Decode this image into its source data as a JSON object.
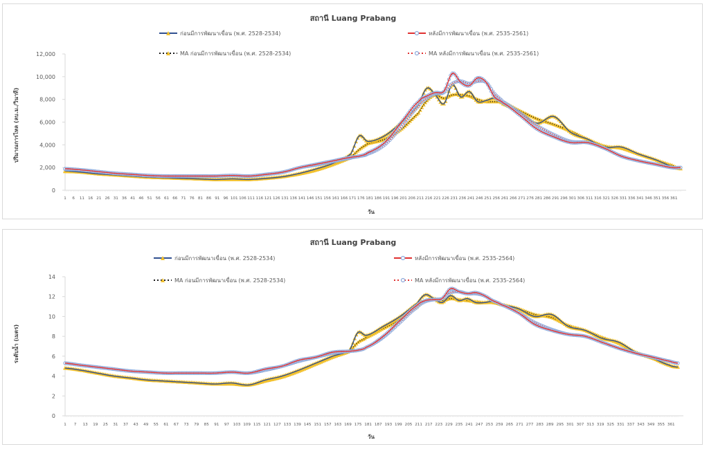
{
  "chart_data": [
    {
      "type": "line",
      "title": "สถานี Luang Prabang",
      "xlabel": "วัน",
      "ylabel": "ปริมาณการไหล (ลบ.ม./วินาที)",
      "ylim": [
        0,
        12000
      ],
      "yticks": [
        0,
        2000,
        4000,
        6000,
        8000,
        10000,
        12000
      ],
      "ytick_labels": [
        "0",
        "2,000",
        "4,000",
        "6,000",
        "8,000",
        "10,000",
        "12,000"
      ],
      "xlim": [
        1,
        365
      ],
      "xtick_step": 5,
      "xtick_labels": [
        "1",
        "6",
        "11",
        "16",
        "21",
        "26",
        "31",
        "36",
        "41",
        "46",
        "51",
        "56",
        "61",
        "66",
        "71",
        "76",
        "81",
        "86",
        "91",
        "96",
        "101",
        "106",
        "111",
        "116",
        "121",
        "126",
        "131",
        "136",
        "141",
        "146",
        "151",
        "156",
        "161",
        "166",
        "171",
        "176",
        "181",
        "186",
        "191",
        "196",
        "201",
        "206",
        "211",
        "216",
        "221",
        "226",
        "231",
        "236",
        "241",
        "246",
        "251",
        "256",
        "261",
        "266",
        "271",
        "276",
        "281",
        "286",
        "291",
        "296",
        "301",
        "306",
        "311",
        "316",
        "321",
        "326",
        "331",
        "336",
        "341",
        "346",
        "351",
        "356",
        "361"
      ],
      "grid": false,
      "legend_position": "top",
      "x": [
        1,
        10,
        20,
        30,
        40,
        50,
        60,
        70,
        80,
        90,
        100,
        110,
        120,
        130,
        140,
        150,
        160,
        170,
        175,
        180,
        190,
        200,
        210,
        215,
        220,
        225,
        230,
        235,
        240,
        245,
        250,
        255,
        260,
        270,
        280,
        290,
        300,
        310,
        320,
        330,
        340,
        350,
        360,
        365
      ],
      "series": [
        {
          "name": "ก่อนมีการพัฒนาเขื่อน (พ.ศ. 2528-2534)",
          "style": "solid-marker",
          "color": "#2f4f8f",
          "marker_color": "#f2c12e",
          "values": [
            1700,
            1600,
            1450,
            1350,
            1250,
            1150,
            1100,
            1050,
            1000,
            950,
            1000,
            950,
            1050,
            1200,
            1500,
            1900,
            2400,
            3200,
            4800,
            4300,
            4800,
            6000,
            7500,
            9000,
            8400,
            7600,
            9300,
            8200,
            8700,
            7800,
            7900,
            8100,
            7600,
            6900,
            5900,
            6500,
            5100,
            4500,
            3800,
            3800,
            3200,
            2700,
            2100,
            1900
          ]
        },
        {
          "name": "หลังมีการพัฒนาเขื่อน (พ.ศ. 2535-2561)",
          "style": "solid-marker",
          "color": "#e03030",
          "marker_color": "#8da9db",
          "values": [
            1900,
            1800,
            1650,
            1500,
            1400,
            1300,
            1250,
            1250,
            1250,
            1250,
            1300,
            1250,
            1400,
            1600,
            2000,
            2300,
            2600,
            2900,
            3000,
            3300,
            4200,
            6000,
            7800,
            8300,
            8600,
            8700,
            10300,
            9500,
            9200,
            9900,
            9500,
            8200,
            7700,
            6600,
            5400,
            4700,
            4200,
            4200,
            3700,
            3000,
            2600,
            2300,
            2000,
            2000
          ]
        },
        {
          "name": "MA ก่อนมีการพัฒนาเขื่อน (พ.ศ. 2528-2534)",
          "style": "dotted-marker",
          "color": "#1a1a1a",
          "marker_color": "#f2c12e",
          "values": [
            1650,
            1600,
            1450,
            1350,
            1250,
            1150,
            1100,
            1050,
            1000,
            950,
            950,
            950,
            1050,
            1200,
            1450,
            1800,
            2300,
            2900,
            3600,
            4100,
            4500,
            5400,
            6800,
            7900,
            8400,
            8100,
            8400,
            8400,
            8300,
            8000,
            7800,
            7800,
            7700,
            7000,
            6300,
            5800,
            5200,
            4500,
            3900,
            3700,
            3200,
            2700,
            2200,
            1900
          ]
        },
        {
          "name": "MA หลังมีการพัฒนาเขื่อน (พ.ศ. 2535-2561)",
          "style": "dotted-marker",
          "color": "#e03030",
          "marker_color": "#8da9db",
          "values": [
            1850,
            1800,
            1650,
            1500,
            1400,
            1300,
            1250,
            1250,
            1250,
            1250,
            1300,
            1250,
            1400,
            1600,
            2000,
            2250,
            2550,
            2850,
            3000,
            3200,
            4000,
            5600,
            7400,
            8100,
            8500,
            8600,
            9400,
            9600,
            9400,
            9600,
            9500,
            8500,
            7800,
            6800,
            5700,
            4900,
            4300,
            4200,
            3700,
            3000,
            2600,
            2300,
            2000,
            2000
          ]
        }
      ]
    },
    {
      "type": "line",
      "title": "สถานี Luang Prabang",
      "xlabel": "วัน",
      "ylabel": "ระดับน้ำ (เมตร)",
      "ylim": [
        0,
        14
      ],
      "yticks": [
        0,
        2,
        4,
        6,
        8,
        10,
        12,
        14
      ],
      "ytick_labels": [
        "0",
        "2",
        "4",
        "6",
        "8",
        "10",
        "12",
        "14"
      ],
      "xlim": [
        1,
        365
      ],
      "xtick_step": 6,
      "xtick_labels": [
        "1",
        "7",
        "13",
        "19",
        "25",
        "31",
        "37",
        "43",
        "49",
        "55",
        "61",
        "67",
        "73",
        "79",
        "85",
        "91",
        "97",
        "103",
        "109",
        "115",
        "121",
        "127",
        "133",
        "139",
        "145",
        "151",
        "157",
        "163",
        "169",
        "175",
        "181",
        "187",
        "193",
        "199",
        "205",
        "211",
        "217",
        "223",
        "229",
        "235",
        "241",
        "247",
        "253",
        "259",
        "265",
        "271",
        "277",
        "283",
        "289",
        "295",
        "301",
        "307",
        "313",
        "319",
        "325",
        "331",
        "337",
        "343",
        "349",
        "355",
        "361"
      ],
      "grid": false,
      "legend_position": "top",
      "x": [
        1,
        10,
        20,
        30,
        40,
        50,
        60,
        70,
        80,
        90,
        100,
        110,
        120,
        130,
        140,
        150,
        160,
        170,
        175,
        180,
        190,
        200,
        210,
        215,
        220,
        225,
        230,
        235,
        240,
        245,
        250,
        255,
        260,
        270,
        280,
        290,
        300,
        310,
        320,
        330,
        340,
        350,
        360,
        365
      ],
      "series": [
        {
          "name": "ก่อนมีการพัฒนาเขื่อน (พ.ศ. 2528-2534)",
          "style": "solid-marker",
          "color": "#2f4f8f",
          "marker_color": "#f2c12e",
          "values": [
            4.8,
            4.6,
            4.3,
            4.0,
            3.8,
            3.6,
            3.5,
            3.4,
            3.3,
            3.2,
            3.3,
            3.1,
            3.6,
            4.0,
            4.6,
            5.3,
            6.0,
            6.6,
            8.4,
            8.1,
            9.0,
            10.0,
            11.3,
            12.2,
            11.8,
            11.4,
            12.1,
            11.6,
            11.8,
            11.4,
            11.4,
            11.5,
            11.2,
            10.8,
            10.0,
            10.2,
            9.0,
            8.6,
            7.8,
            7.4,
            6.4,
            5.8,
            5.1,
            4.9
          ]
        },
        {
          "name": "หลังมีการพัฒนาเขื่อน (พ.ศ. 2535-2564)",
          "style": "solid-marker",
          "color": "#e03030",
          "marker_color": "#8da9db",
          "values": [
            5.3,
            5.1,
            4.9,
            4.7,
            4.5,
            4.4,
            4.3,
            4.3,
            4.3,
            4.3,
            4.4,
            4.3,
            4.7,
            5.0,
            5.6,
            5.9,
            6.4,
            6.5,
            6.6,
            6.9,
            8.0,
            9.6,
            11.1,
            11.6,
            11.7,
            11.8,
            12.8,
            12.5,
            12.3,
            12.4,
            12.1,
            11.6,
            11.2,
            10.4,
            9.2,
            8.6,
            8.2,
            8.0,
            7.4,
            6.8,
            6.3,
            5.9,
            5.5,
            5.3
          ]
        },
        {
          "name": "MA ก่อนมีการพัฒนาเขื่อน (พ.ศ. 2528-2534)",
          "style": "dotted-marker",
          "color": "#1a1a1a",
          "marker_color": "#f2c12e",
          "values": [
            4.8,
            4.6,
            4.3,
            4.0,
            3.8,
            3.6,
            3.5,
            3.4,
            3.3,
            3.2,
            3.2,
            3.1,
            3.5,
            3.9,
            4.5,
            5.2,
            5.9,
            6.5,
            7.4,
            7.9,
            8.8,
            9.7,
            11.0,
            11.6,
            11.8,
            11.6,
            11.8,
            11.7,
            11.6,
            11.5,
            11.4,
            11.4,
            11.2,
            10.8,
            10.2,
            9.9,
            9.1,
            8.6,
            7.9,
            7.3,
            6.4,
            5.8,
            5.1,
            4.9
          ]
        },
        {
          "name": "MA หลังมีการพัฒนาเขื่อน (พ.ศ. 2535-2564)",
          "style": "dotted-marker",
          "color": "#e03030",
          "marker_color": "#8da9db",
          "values": [
            5.3,
            5.1,
            4.9,
            4.7,
            4.5,
            4.4,
            4.3,
            4.3,
            4.3,
            4.3,
            4.4,
            4.3,
            4.6,
            5.0,
            5.5,
            5.9,
            6.3,
            6.5,
            6.6,
            6.9,
            7.9,
            9.4,
            10.9,
            11.5,
            11.7,
            11.8,
            12.4,
            12.5,
            12.3,
            12.3,
            12.1,
            11.6,
            11.2,
            10.4,
            9.4,
            8.7,
            8.2,
            8.0,
            7.4,
            6.8,
            6.3,
            5.9,
            5.5,
            5.3
          ]
        }
      ]
    }
  ]
}
